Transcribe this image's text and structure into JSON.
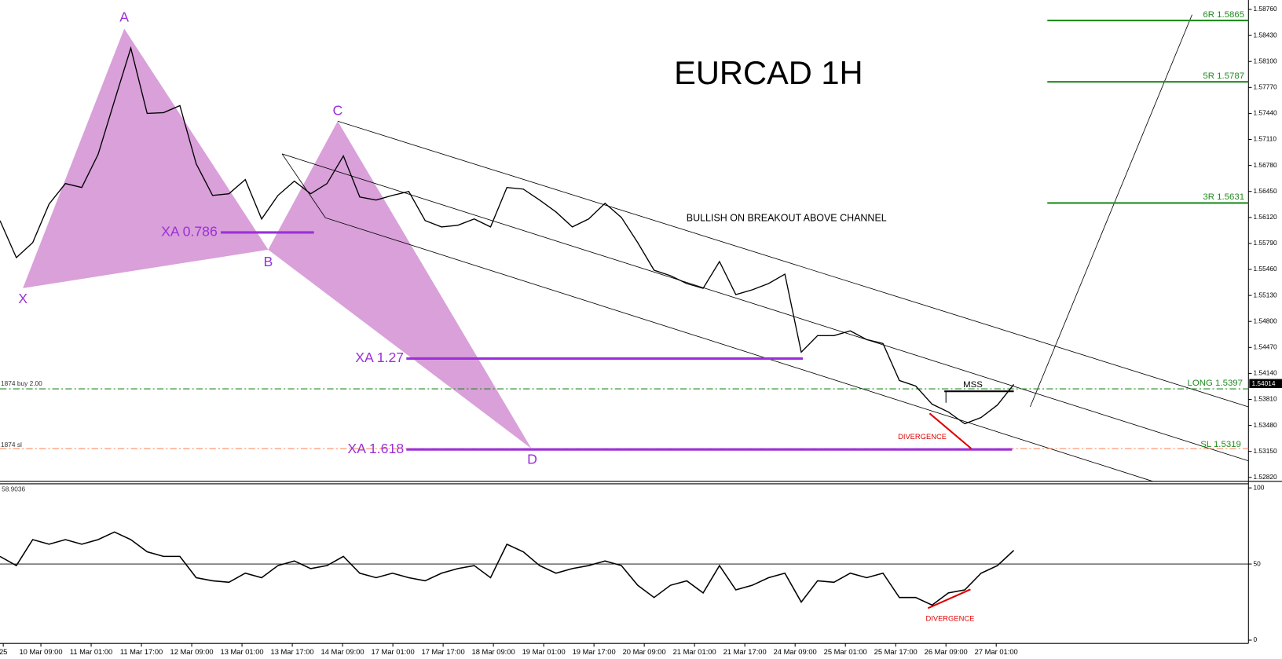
{
  "chart_data": [
    {
      "type": "line",
      "title": "EURCAD 1H",
      "color": "#000000",
      "values": [
        1.5608,
        1.5561,
        1.558,
        1.5629,
        1.5655,
        1.565,
        1.5692,
        1.576,
        1.5827,
        1.5744,
        1.5745,
        1.5754,
        1.568,
        1.564,
        1.5642,
        1.566,
        1.561,
        1.564,
        1.5658,
        1.5642,
        1.5655,
        1.569,
        1.5638,
        1.5634,
        1.564,
        1.5645,
        1.5608,
        1.56,
        1.5602,
        1.561,
        1.56,
        1.565,
        1.5648,
        1.5634,
        1.5619,
        1.56,
        1.561,
        1.563,
        1.5612,
        1.558,
        1.5545,
        1.5538,
        1.5528,
        1.5522,
        1.5556,
        1.5514,
        1.552,
        1.5528,
        1.554,
        1.5441,
        1.5462,
        1.5462,
        1.5468,
        1.5457,
        1.5452,
        1.5405,
        1.5398,
        1.5375,
        1.5365,
        1.535,
        1.5358,
        1.5374,
        1.54
      ],
      "ylim": [
        1.5277,
        1.5888
      ],
      "yticks": [
        {
          "value": 1.5876,
          "label": "1.58760"
        },
        {
          "value": 1.5843,
          "label": "1.58430"
        },
        {
          "value": 1.581,
          "label": "1.58100"
        },
        {
          "value": 1.5777,
          "label": "1.57770"
        },
        {
          "value": 1.5744,
          "label": "1.57440"
        },
        {
          "value": 1.5711,
          "label": "1.57110"
        },
        {
          "value": 1.5678,
          "label": "1.56780"
        },
        {
          "value": 1.5645,
          "label": "1.56450"
        },
        {
          "value": 1.5612,
          "label": "1.56120"
        },
        {
          "value": 1.5579,
          "label": "1.55790"
        },
        {
          "value": 1.5546,
          "label": "1.55460"
        },
        {
          "value": 1.5513,
          "label": "1.55130"
        },
        {
          "value": 1.548,
          "label": "1.54800"
        },
        {
          "value": 1.5447,
          "label": "1.54470"
        },
        {
          "value": 1.5414,
          "label": "1.54140"
        },
        {
          "value": 1.5381,
          "label": "1.53810"
        },
        {
          "value": 1.5348,
          "label": "1.53480"
        },
        {
          "value": 1.5315,
          "label": "1.53150"
        },
        {
          "value": 1.5282,
          "label": "1.52820"
        }
      ],
      "xtick_labels": [
        "25",
        "10 Mar 09:00",
        "11 Mar 01:00",
        "11 Mar 17:00",
        "12 Mar 09:00",
        "13 Mar 01:00",
        "13 Mar 17:00",
        "14 Mar 09:00",
        "17 Mar 01:00",
        "17 Mar 17:00",
        "18 Mar 09:00",
        "19 Mar 01:00",
        "19 Mar 17:00",
        "20 Mar 09:00",
        "21 Mar 01:00",
        "21 Mar 17:00",
        "24 Mar 09:00",
        "25 Mar 01:00",
        "25 Mar 17:00",
        "26 Mar 09:00",
        "27 Mar 01:00"
      ],
      "last_price": "1.54014",
      "annotations": {
        "points": [
          "X",
          "A",
          "B",
          "C",
          "D"
        ],
        "fib_levels": [
          "XA 0.786",
          "XA 1.27",
          "XA 1.618"
        ],
        "targets": [
          "6R 1.5865",
          "5R 1.5787",
          "3R 1.5631"
        ],
        "long": "LONG 1.5397",
        "sl": "SL 1.5319",
        "order_buy": "1874 buy 2.00",
        "order_sl": "1874 sl",
        "mss": "MSS",
        "divergence": "DIVERGENCE",
        "note": "BULLISH ON BREAKOUT ABOVE CHANNEL"
      }
    },
    {
      "type": "line",
      "color": "#000000",
      "current_value_label": "58.9036",
      "values": [
        55,
        49,
        66,
        63,
        66,
        63,
        66,
        71,
        66,
        58,
        55,
        55,
        41,
        39,
        38,
        44,
        41,
        49,
        52,
        47,
        49,
        55,
        44,
        41,
        44,
        41,
        39,
        44,
        47,
        49,
        41,
        63,
        58,
        49,
        44,
        47,
        49,
        52,
        49,
        36,
        28,
        36,
        39,
        31,
        49,
        33,
        36,
        41,
        44,
        25,
        39,
        38,
        44,
        41,
        44,
        28,
        28,
        23,
        31,
        33,
        44,
        49,
        59
      ],
      "ylim": [
        0,
        100
      ],
      "yticks": [
        0,
        50,
        100
      ],
      "divergence": "DIVERGENCE"
    }
  ]
}
